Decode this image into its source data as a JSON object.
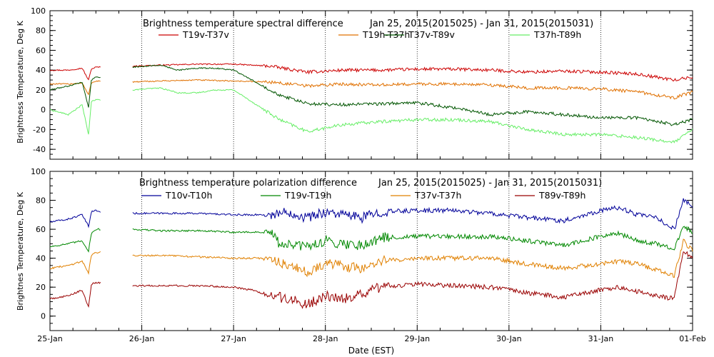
{
  "chart_data": [
    {
      "type": "line",
      "title": "Brightness temperature spectral difference",
      "date_range": "Jan 25, 2015(2015025) - Jan 31, 2015(2015031)",
      "ylabel": "Brightness Temperature, Deg K",
      "xlabel": "",
      "ylim": [
        -50,
        100
      ],
      "yticks": [
        -40,
        -20,
        0,
        20,
        40,
        60,
        80,
        100
      ],
      "xlim": [
        0,
        7
      ],
      "xticks": [
        0,
        1,
        2,
        3,
        4,
        5,
        6,
        7
      ],
      "xtick_labels": [
        "",
        "",
        "",
        "",
        "",
        "",
        "",
        ""
      ],
      "data_gap": [
        0.55,
        0.9
      ],
      "series": [
        {
          "name": "T19v-T37v",
          "color": "#cc0000",
          "x": [
            0,
            0.2,
            0.35,
            0.42,
            0.45,
            0.5,
            0.55,
            0.9,
            1.2,
            1.6,
            2.0,
            2.4,
            2.8,
            3.2,
            3.6,
            4.0,
            4.4,
            4.8,
            5.2,
            5.6,
            6.0,
            6.4,
            6.8,
            7.0
          ],
          "values": [
            40,
            40,
            42,
            30,
            41,
            43,
            43,
            44,
            45,
            46,
            46,
            44,
            38,
            40,
            40,
            41,
            41,
            40,
            38,
            39,
            38,
            36,
            30,
            33
          ]
        },
        {
          "name": "T19h-T37h",
          "color": "#e07000",
          "x": [
            0,
            0.2,
            0.35,
            0.42,
            0.45,
            0.5,
            0.55,
            0.9,
            1.2,
            1.6,
            2.0,
            2.4,
            2.8,
            3.2,
            3.6,
            4.0,
            4.4,
            4.8,
            5.2,
            5.6,
            6.0,
            6.4,
            6.8,
            7.0
          ],
          "values": [
            26,
            26,
            27,
            15,
            27,
            29,
            29,
            28,
            29,
            30,
            29,
            28,
            24,
            26,
            25,
            26,
            26,
            25,
            22,
            22,
            21,
            18,
            12,
            18
          ]
        },
        {
          "name": "T37v-T89v",
          "color": "#005500",
          "x": [
            0,
            0.2,
            0.35,
            0.42,
            0.45,
            0.5,
            0.55,
            0.9,
            1.2,
            1.4,
            1.6,
            1.8,
            2.0,
            2.2,
            2.5,
            2.8,
            3.2,
            3.6,
            4.0,
            4.4,
            4.8,
            5.2,
            5.6,
            6.0,
            6.4,
            6.8,
            7.0
          ],
          "values": [
            20,
            24,
            28,
            2,
            30,
            33,
            33,
            43,
            45,
            40,
            42,
            42,
            40,
            30,
            15,
            6,
            5,
            6,
            7,
            2,
            -5,
            -2,
            -5,
            -8,
            -8,
            -15,
            -10
          ]
        },
        {
          "name": "T37h-T89h",
          "color": "#66ee66",
          "x": [
            0,
            0.2,
            0.35,
            0.42,
            0.45,
            0.5,
            0.55,
            0.9,
            1.2,
            1.4,
            1.6,
            1.8,
            2.0,
            2.2,
            2.5,
            2.8,
            3.2,
            3.6,
            4.0,
            4.4,
            4.8,
            5.2,
            5.6,
            6.0,
            6.4,
            6.8,
            7.0
          ],
          "values": [
            0,
            -5,
            5,
            -25,
            8,
            10,
            10,
            20,
            22,
            17,
            17,
            20,
            20,
            8,
            -10,
            -22,
            -15,
            -12,
            -10,
            -10,
            -12,
            -20,
            -25,
            -25,
            -28,
            -33,
            -20
          ]
        }
      ]
    },
    {
      "type": "line",
      "title": "Brightness temperature polarization difference",
      "date_range": "Jan 25, 2015(2015025) - Jan 31, 2015(2015031)",
      "ylabel": "Brightnes Temperature, Deg K",
      "xlabel": "Date (EST)",
      "ylim": [
        -10,
        100
      ],
      "yticks": [
        0,
        20,
        40,
        60,
        80,
        100
      ],
      "xlim": [
        0,
        7
      ],
      "xticks": [
        0,
        1,
        2,
        3,
        4,
        5,
        6,
        7
      ],
      "xtick_labels": [
        "25-Jan",
        "26-Jan",
        "27-Jan",
        "28-Jan",
        "29-Jan",
        "30-Jan",
        "31-Jan",
        "01-Feb"
      ],
      "data_gap": [
        0.55,
        0.9
      ],
      "series": [
        {
          "name": "T10v-T10h",
          "color": "#000099",
          "x": [
            0,
            0.2,
            0.35,
            0.42,
            0.45,
            0.5,
            0.55,
            0.9,
            1.2,
            1.6,
            2.0,
            2.4,
            2.6,
            2.8,
            3.0,
            3.2,
            3.4,
            3.6,
            4.0,
            4.4,
            4.8,
            5.2,
            5.6,
            6.0,
            6.2,
            6.4,
            6.6,
            6.8,
            6.9,
            7.0
          ],
          "values": [
            65,
            67,
            70,
            62,
            72,
            73,
            72,
            71,
            71,
            71,
            70,
            70,
            72,
            68,
            72,
            70,
            68,
            72,
            73,
            73,
            71,
            68,
            66,
            73,
            75,
            70,
            68,
            60,
            80,
            76
          ]
        },
        {
          "name": "T19v-T19h",
          "color": "#008800",
          "x": [
            0,
            0.2,
            0.35,
            0.42,
            0.45,
            0.5,
            0.55,
            0.9,
            1.2,
            1.6,
            2.0,
            2.4,
            2.5,
            2.8,
            3.0,
            3.2,
            3.4,
            3.6,
            4.0,
            4.4,
            4.8,
            5.2,
            5.6,
            6.0,
            6.2,
            6.4,
            6.6,
            6.8,
            6.9,
            7.0
          ],
          "values": [
            48,
            50,
            52,
            45,
            57,
            60,
            60,
            60,
            59,
            59,
            58,
            58,
            50,
            48,
            52,
            50,
            49,
            54,
            55,
            55,
            55,
            52,
            49,
            55,
            57,
            52,
            50,
            46,
            62,
            58
          ]
        },
        {
          "name": "T37v-T37h",
          "color": "#e08000",
          "x": [
            0,
            0.2,
            0.35,
            0.42,
            0.45,
            0.5,
            0.55,
            0.9,
            1.2,
            1.6,
            2.0,
            2.4,
            2.6,
            2.8,
            3.0,
            3.2,
            3.4,
            3.6,
            4.0,
            4.4,
            4.8,
            5.2,
            5.6,
            6.0,
            6.2,
            6.4,
            6.6,
            6.8,
            6.9,
            7.0
          ],
          "values": [
            33,
            35,
            38,
            30,
            42,
            44,
            44,
            42,
            42,
            41,
            40,
            40,
            35,
            30,
            37,
            34,
            33,
            38,
            40,
            40,
            40,
            36,
            33,
            36,
            38,
            36,
            32,
            28,
            52,
            45
          ]
        },
        {
          "name": "T89v-T89h",
          "color": "#990000",
          "x": [
            0,
            0.2,
            0.35,
            0.42,
            0.45,
            0.5,
            0.55,
            0.9,
            1.2,
            1.6,
            2.0,
            2.2,
            2.4,
            2.6,
            2.8,
            3.0,
            3.2,
            3.4,
            3.6,
            4.0,
            4.4,
            4.8,
            5.2,
            5.6,
            6.0,
            6.2,
            6.4,
            6.6,
            6.8,
            6.9,
            7.0
          ],
          "values": [
            12,
            14,
            18,
            6,
            22,
            23,
            23,
            21,
            21,
            21,
            20,
            18,
            14,
            12,
            8,
            14,
            12,
            15,
            20,
            22,
            21,
            20,
            16,
            13,
            18,
            20,
            17,
            14,
            12,
            45,
            40
          ]
        }
      ]
    }
  ]
}
